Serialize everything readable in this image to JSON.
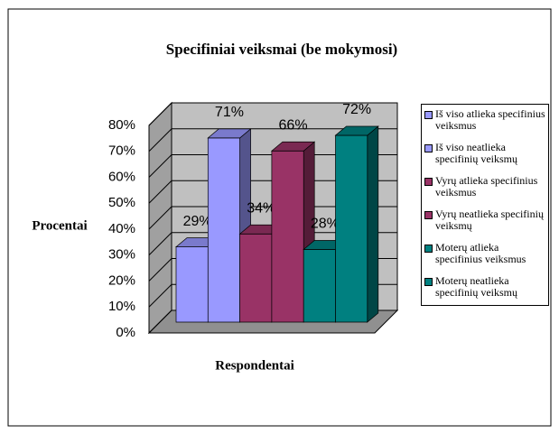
{
  "chart_data": {
    "type": "bar3d",
    "title": "Specifiniai veiksmai (be mokymosi)",
    "x_label": "Respondentai",
    "y_label": "Procentai",
    "categories": [
      null
    ],
    "series": [
      {
        "name": "Iš viso atlieka specifinius veiksmus",
        "color": "#9999ff",
        "values": [
          29
        ],
        "value_labels": [
          "29%"
        ]
      },
      {
        "name": "Iš viso neatlieka specifinių veiksmų",
        "color": "#9999ff",
        "values": [
          71
        ],
        "value_labels": [
          "71%"
        ]
      },
      {
        "name": "Vyrų atlieka specifinius veiksmus",
        "color": "#993366",
        "values": [
          34
        ],
        "value_labels": [
          "34%"
        ]
      },
      {
        "name": "Vyrų neatlieka specifinių veiksmų",
        "color": "#993366",
        "values": [
          66
        ],
        "value_labels": [
          "66%"
        ]
      },
      {
        "name": "Moterų atlieka specifinius veiksmus",
        "color": "#008080",
        "values": [
          28
        ],
        "value_labels": [
          "28%"
        ]
      },
      {
        "name": "Moterų neatlieka specifinių veiksmų",
        "color": "#008080",
        "values": [
          72
        ],
        "value_labels": [
          "72%"
        ]
      }
    ],
    "ylim": [
      0,
      80
    ],
    "yticks": [
      {
        "value": 0,
        "label": "0%"
      },
      {
        "value": 10,
        "label": "10%"
      },
      {
        "value": 20,
        "label": "20%"
      },
      {
        "value": 30,
        "label": "30%"
      },
      {
        "value": 40,
        "label": "40%"
      },
      {
        "value": 50,
        "label": "50%"
      },
      {
        "value": 60,
        "label": "60%"
      },
      {
        "value": 70,
        "label": "70%"
      },
      {
        "value": 80,
        "label": "80%"
      }
    ],
    "grid": true
  }
}
